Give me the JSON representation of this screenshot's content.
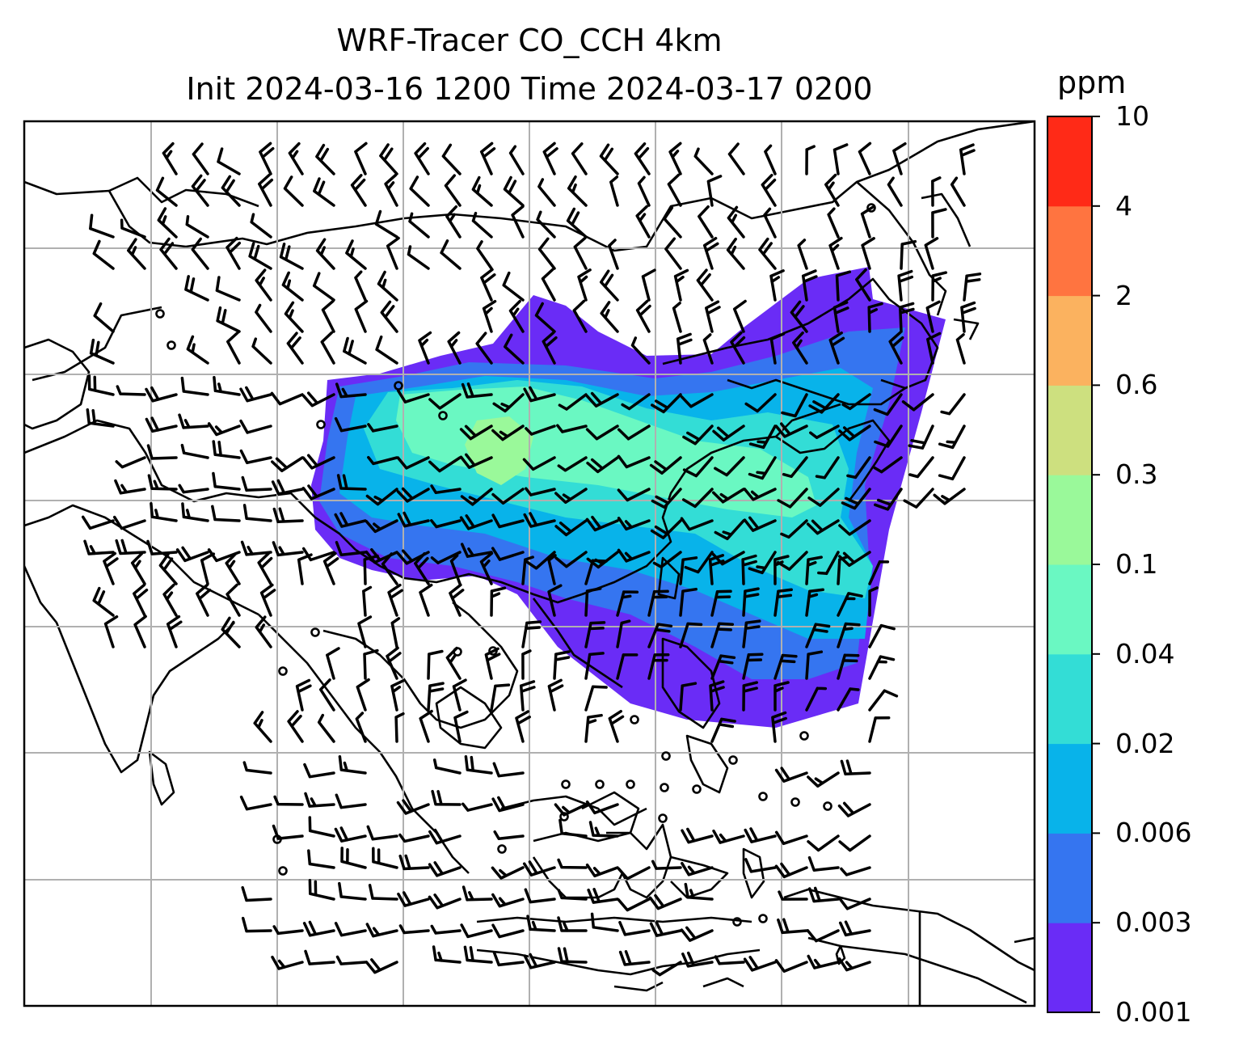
{
  "figure": {
    "title_line1": "WRF-Tracer CO_CCH 4km",
    "title_line2": "Init 2024-03-16 1200 Time 2024-03-17 0200"
  },
  "colorbar": {
    "unit": "ppm",
    "levels": [
      "0.001",
      "0.003",
      "0.006",
      "0.02",
      "0.04",
      "0.1",
      "0.3",
      "0.6",
      "2",
      "4",
      "10"
    ],
    "colors": [
      "#6a2cf6",
      "#3575f0",
      "#08b3ea",
      "#33ddd6",
      "#6af8c2",
      "#9af99a",
      "#cde07f",
      "#fbb25f",
      "#ff7440",
      "#ff2a17"
    ]
  },
  "map": {
    "gridlines": true,
    "overlay": "wind-barbs",
    "calm_marker": "circle"
  }
}
